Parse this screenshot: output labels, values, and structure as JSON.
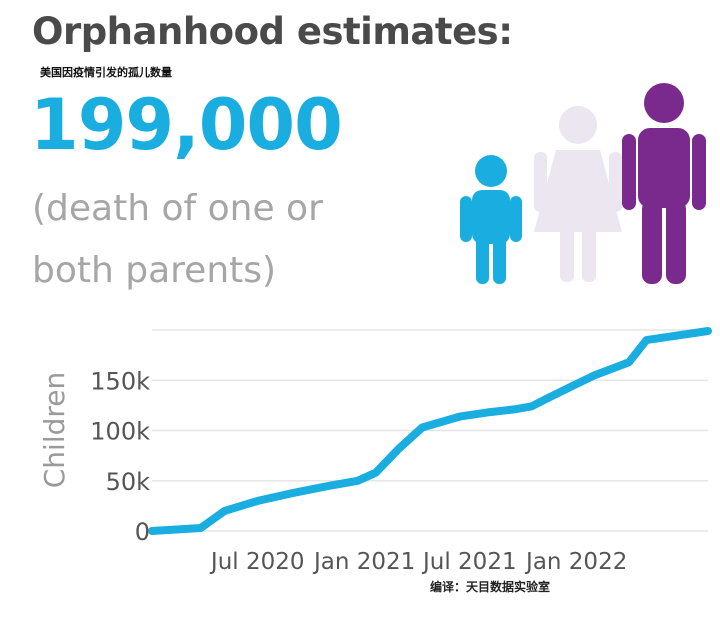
{
  "header": {
    "title": "Orphanhood estimates:",
    "subtitle_cn": "美国因疫情引发的孤儿数量",
    "headline_number": "199,000",
    "caption": "(death of one or both parents)"
  },
  "icons": {
    "child": {
      "name": "child-icon",
      "color": "#1aaee0"
    },
    "mother": {
      "name": "woman-icon",
      "color": "#ece6f0"
    },
    "father": {
      "name": "man-icon",
      "color": "#7a2a8c"
    }
  },
  "colors": {
    "line": "#1aaee0",
    "grid": "#e6e6e6",
    "tick_text": "#555555",
    "axis_label": "#9a9a9a"
  },
  "credit": "编译：天目数据实验室",
  "chart_data": {
    "type": "line",
    "ylabel": "Children",
    "xlabel": "",
    "title": "",
    "ylim": [
      0,
      200000
    ],
    "xlim": [
      "2020-01-01",
      "2022-08-15"
    ],
    "yticks": [
      0,
      50000,
      100000,
      150000
    ],
    "ytick_labels": [
      "0",
      "50k",
      "100k",
      "150k"
    ],
    "xticks": [
      "2020-07-01",
      "2021-01-01",
      "2021-07-01",
      "2022-01-01"
    ],
    "xtick_labels": [
      "Jul 2020",
      "Jan 2021",
      "Jul 2021",
      "Jan 2022"
    ],
    "grid": true,
    "series": [
      {
        "x": [
          "2020-01-01",
          "2020-03-25",
          "2020-05-05",
          "2020-07-01",
          "2020-09-01",
          "2020-11-01",
          "2020-12-20",
          "2021-01-20",
          "2021-03-01",
          "2021-04-10",
          "2021-06-15",
          "2021-08-01",
          "2021-09-15",
          "2021-10-15",
          "2021-11-15",
          "2021-12-20",
          "2022-02-01",
          "2022-04-01",
          "2022-05-01",
          "2022-08-15"
        ],
        "y": [
          0,
          3000,
          20000,
          30000,
          38000,
          45000,
          50000,
          58000,
          82000,
          103000,
          114000,
          118000,
          121000,
          124000,
          133000,
          143000,
          155000,
          168000,
          190000,
          199000
        ]
      }
    ]
  }
}
